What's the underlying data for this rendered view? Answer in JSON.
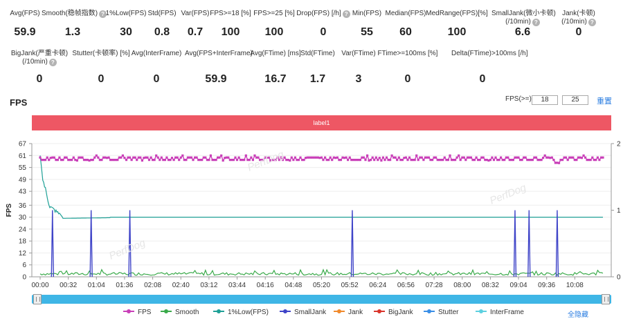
{
  "stats_row1": [
    {
      "label": "Avg(FPS)",
      "value": "59.9",
      "help": false
    },
    {
      "label": "Smooth(稳帧指数)",
      "value": "1.3",
      "help": true
    },
    {
      "label": "1%Low(FPS)",
      "value": "30",
      "help": false
    },
    {
      "label": "Std(FPS)",
      "value": "0.8",
      "help": false
    },
    {
      "label": "Var(FPS)",
      "value": "0.7",
      "help": false
    },
    {
      "label": "FPS>=18 [%]",
      "value": "100",
      "help": false
    },
    {
      "label": "FPS>=25 [%]",
      "value": "100",
      "help": false
    },
    {
      "label": "Drop(FPS) [/h]",
      "value": "0",
      "help": true
    },
    {
      "label": "Min(FPS)",
      "value": "55",
      "help": false
    },
    {
      "label": "Median(FPS)",
      "value": "60",
      "help": false
    },
    {
      "label": "MedRange(FPS)[%]",
      "value": "100",
      "help": false
    },
    {
      "label": "SmallJank(微小卡顿)",
      "label2": "(/10min)",
      "value": "6.6",
      "help": true
    },
    {
      "label": "Jank(卡顿)",
      "label2": "(/10min)",
      "value": "0",
      "help": true
    }
  ],
  "stats_row2": [
    {
      "label": "BigJank(严重卡顿)",
      "label2": "(/10min)",
      "value": "0",
      "help": true
    },
    {
      "label": "Stutter(卡顿率) [%]",
      "value": "0",
      "help": false
    },
    {
      "label": "Avg(InterFrame)",
      "value": "0",
      "help": false
    },
    {
      "label": "Avg(FPS+InterFrame)",
      "value": "59.9",
      "help": false
    },
    {
      "label": "Avg(FTime) [ms]",
      "value": "16.7",
      "help": false
    },
    {
      "label": "Std(FTime)",
      "value": "1.7",
      "help": false
    },
    {
      "label": "Var(FTime)",
      "value": "3",
      "help": false
    },
    {
      "label": "FTime>=100ms [%]",
      "value": "0",
      "help": false
    },
    {
      "label": "Delta(FTime)>100ms [/h]",
      "value": "0",
      "help": false
    }
  ],
  "chart_header": {
    "title": "FPS",
    "threshold_label": "FPS(>=)",
    "threshold1": "18",
    "threshold2": "25",
    "reset_label": "重置"
  },
  "label_bar": "label1",
  "legend_hide_all": "全隐藏",
  "chart_data": {
    "type": "line",
    "title": "",
    "ylabel": "FPS",
    "yticks": [
      "67",
      "61",
      "55",
      "49",
      "43",
      "36",
      "30",
      "24",
      "18",
      "12",
      "6",
      "0"
    ],
    "ylim": [
      0,
      67
    ],
    "y2ticks": [
      "2",
      "1",
      "0"
    ],
    "y2lim": [
      0,
      2
    ],
    "xticks": [
      "00:00",
      "00:32",
      "01:04",
      "01:36",
      "02:08",
      "02:40",
      "03:12",
      "03:44",
      "04:16",
      "04:48",
      "05:20",
      "05:52",
      "06:24",
      "06:56",
      "07:28",
      "08:00",
      "08:32",
      "09:04",
      "09:36",
      "10:08"
    ],
    "x_range_seconds": [
      0,
      640
    ],
    "series": [
      {
        "name": "FPS",
        "color": "#c93fb8",
        "axis": "left",
        "typical": 60,
        "min": 55
      },
      {
        "name": "Smooth",
        "color": "#3aaa4a",
        "axis": "left",
        "typical": 1.3
      },
      {
        "name": "1%Low(FPS)",
        "color": "#1ea096",
        "axis": "left",
        "start": 61,
        "steady": 30
      },
      {
        "name": "SmallJank",
        "color": "#3f44c8",
        "axis": "right",
        "events_seconds": [
          14,
          58,
          102,
          355,
          540,
          556,
          588
        ]
      },
      {
        "name": "Jank",
        "color": "#f08a2c",
        "axis": "right"
      },
      {
        "name": "BigJank",
        "color": "#d9342b",
        "axis": "right"
      },
      {
        "name": "Stutter",
        "color": "#3a8ee6",
        "axis": "right"
      },
      {
        "name": "InterFrame",
        "color": "#5cd0e0",
        "axis": "left"
      }
    ]
  }
}
